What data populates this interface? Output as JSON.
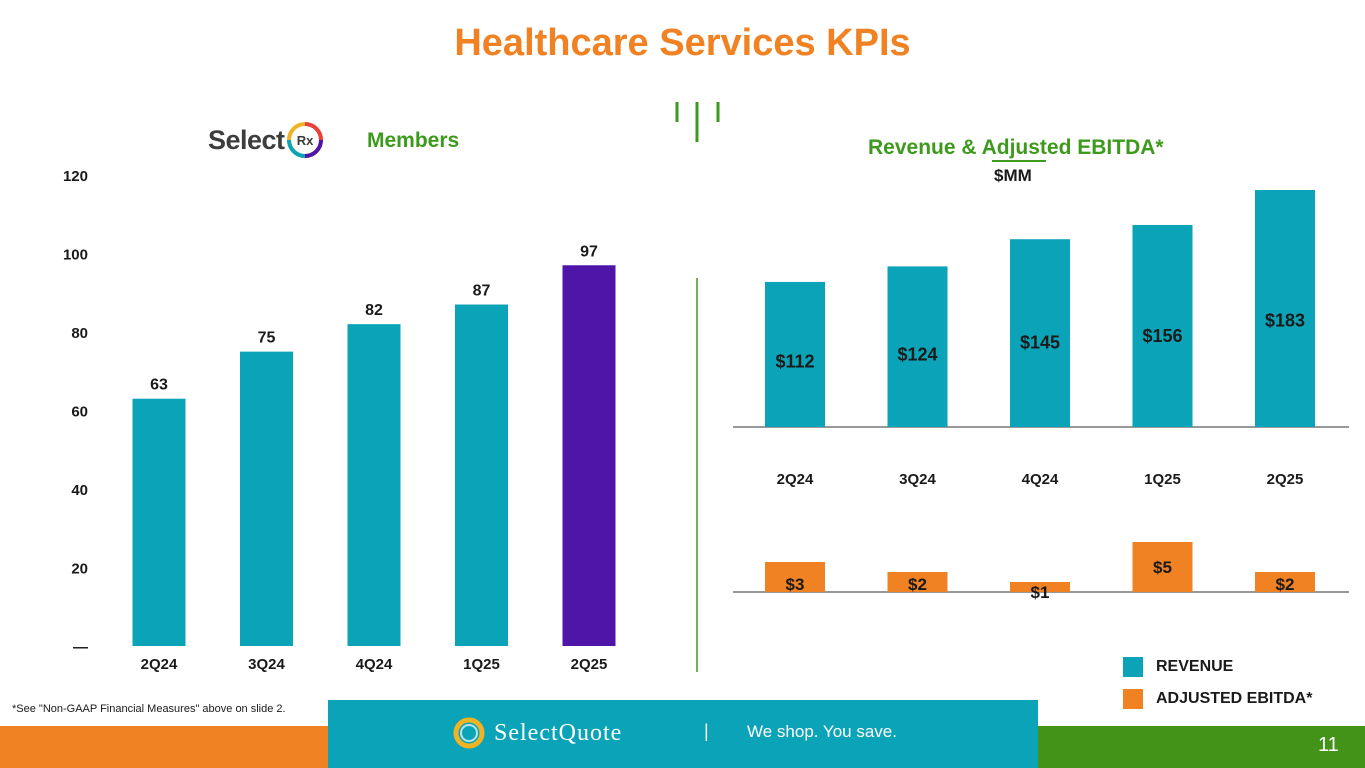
{
  "title": "Healthcare Services KPIs",
  "left_panel": {
    "logo_text": "Select",
    "logo_badge": "Rx",
    "subtitle": "Members"
  },
  "right_panel": {
    "title": "Revenue & Adjusted EBITDA*",
    "unit": "$MM"
  },
  "chart_data": [
    {
      "type": "bar",
      "title": "Members",
      "categories": [
        "2Q24",
        "3Q24",
        "4Q24",
        "1Q25",
        "2Q25"
      ],
      "values": [
        63,
        75,
        82,
        87,
        97
      ],
      "value_labels": [
        "63",
        "75",
        "82",
        "87",
        "97"
      ],
      "yticks": [
        "—",
        "20",
        "40",
        "60",
        "80",
        "100",
        "120"
      ],
      "ylim": [
        0,
        120
      ],
      "colors": [
        "#0aa3b8",
        "#0aa3b8",
        "#0aa3b8",
        "#0aa3b8",
        "#4f14a8"
      ],
      "grid": false
    },
    {
      "type": "bar",
      "title": "Revenue & Adjusted EBITDA*",
      "ylabel": "$MM",
      "categories": [
        "2Q24",
        "3Q24",
        "4Q24",
        "1Q25",
        "2Q25"
      ],
      "series": [
        {
          "name": "REVENUE",
          "color": "#0aa3b8",
          "values": [
            112,
            124,
            145,
            156,
            183
          ],
          "labels": [
            "$112",
            "$124",
            "$145",
            "$156",
            "$183"
          ]
        },
        {
          "name": "ADJUSTED EBITDA*",
          "color": "#f08223",
          "values": [
            3,
            2,
            1,
            5,
            2
          ],
          "labels": [
            "$3",
            "$2",
            "$1",
            "$5",
            "$2"
          ]
        }
      ],
      "legend": "bottom-right",
      "grid": false
    }
  ],
  "legend": {
    "revenue": "REVENUE",
    "ebitda": "ADJUSTED EBITDA*"
  },
  "footnote": "*See \"Non-GAAP Financial Measures\" above on slide 2.",
  "footer": {
    "brand": "SelectQuote",
    "separator": "|",
    "tagline": "We shop. You save.",
    "page_number": "11"
  },
  "colors": {
    "accent_orange": "#f08223",
    "accent_green": "#3e9a1c",
    "teal": "#0aa3b8",
    "purple": "#4f14a8"
  }
}
